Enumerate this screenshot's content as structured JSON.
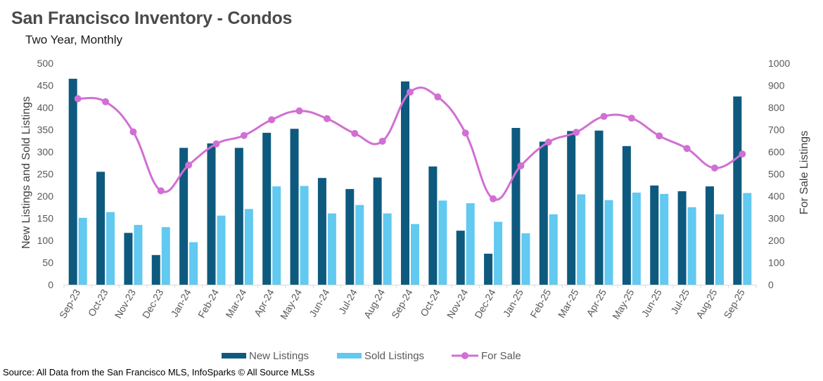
{
  "header": {
    "title": "San Francisco Inventory - Condos",
    "subtitle": "Two Year, Monthly"
  },
  "footer": {
    "source": "Source: All Data from the San Francisco MLS, InfoSparks © All Source MLSs"
  },
  "chart_data": {
    "type": "bar",
    "title": "San Francisco Inventory - Condos",
    "subtitle": "Two Year, Monthly",
    "categories": [
      "Sep-23",
      "Oct-23",
      "Nov-23",
      "Dec-23",
      "Jan-24",
      "Feb-24",
      "Mar-24",
      "Apr-24",
      "May-24",
      "Jun-24",
      "Jul-24",
      "Aug-24",
      "Sep-24",
      "Oct-24",
      "Nov-24",
      "Dec-24",
      "Jan-25",
      "Feb-25",
      "Mar-25",
      "Apr-25",
      "May-25",
      "Jun-25",
      "Jul-25",
      "Aug-25",
      "Sep-25"
    ],
    "series": [
      {
        "name": "New Listings",
        "type": "bar",
        "axis": "left",
        "color": "#0e5a7e",
        "values": [
          465,
          255,
          117,
          67,
          309,
          319,
          309,
          343,
          352,
          241,
          216,
          242,
          459,
          267,
          122,
          70,
          354,
          323,
          347,
          348,
          313,
          224,
          211,
          222,
          425
        ]
      },
      {
        "name": "Sold Listings",
        "type": "bar",
        "axis": "left",
        "color": "#62c9f0",
        "values": [
          151,
          164,
          135,
          130,
          96,
          156,
          171,
          222,
          223,
          161,
          180,
          161,
          137,
          190,
          184,
          142,
          116,
          159,
          204,
          191,
          208,
          205,
          175,
          159,
          207
        ]
      },
      {
        "name": "For Sale",
        "type": "line",
        "axis": "right",
        "color": "#d16fd4",
        "values": [
          840,
          826,
          690,
          424,
          540,
          636,
          674,
          745,
          785,
          750,
          683,
          648,
          870,
          848,
          685,
          388,
          537,
          644,
          688,
          760,
          752,
          672,
          615,
          527,
          590
        ]
      }
    ],
    "left_axis": {
      "label": "New Listings and Sold Listings",
      "min": 0,
      "max": 500,
      "ticks": [
        0,
        50,
        100,
        150,
        200,
        250,
        300,
        350,
        400,
        450,
        500
      ]
    },
    "right_axis": {
      "label": "For Sale Listings",
      "min": 0,
      "max": 1000,
      "ticks": [
        0,
        100,
        200,
        300,
        400,
        500,
        600,
        700,
        800,
        900,
        1000
      ]
    },
    "legend": {
      "position": "bottom",
      "items": [
        "New Listings",
        "Sold Listings",
        "For Sale"
      ]
    },
    "grid": false
  }
}
